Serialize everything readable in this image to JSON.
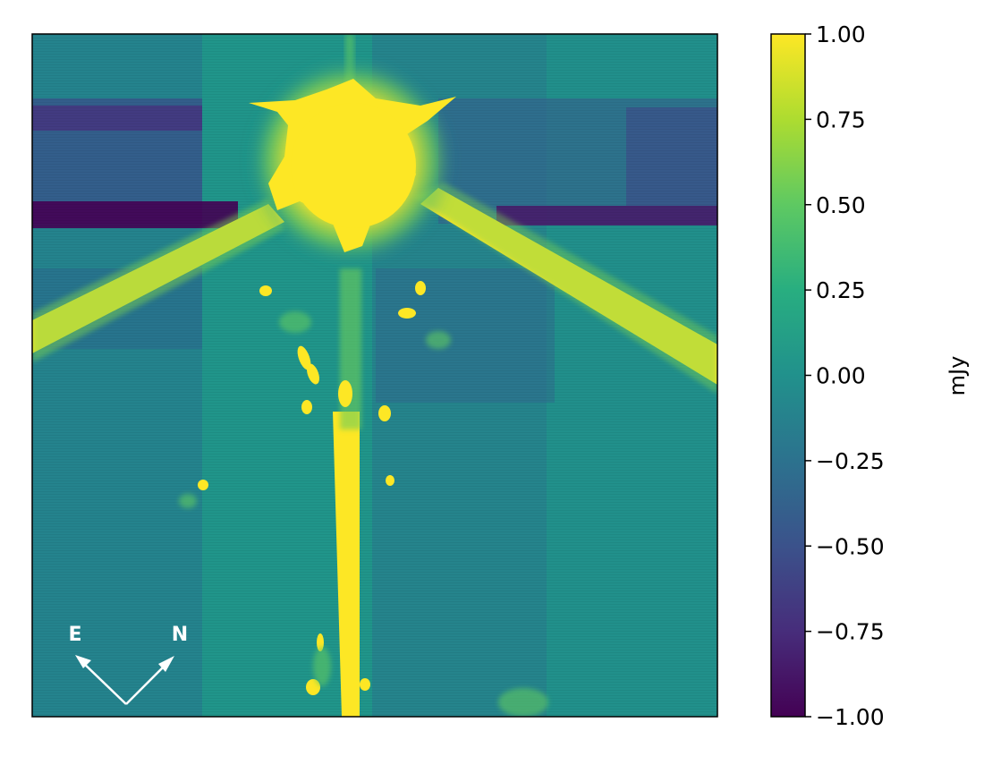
{
  "chart_data": {
    "type": "heatmap",
    "colormap": "viridis",
    "colorbar": {
      "label": "mJy",
      "range": [
        -1.0,
        1.0
      ],
      "ticks": [
        1.0,
        0.75,
        0.5,
        0.25,
        0.0,
        -0.25,
        -0.5,
        -0.75,
        -1.0
      ],
      "tick_labels": [
        "1.00",
        "0.75",
        "0.50",
        "0.25",
        "0.00",
        "−0.25",
        "−0.50",
        "−0.75",
        "−1.00"
      ]
    },
    "compass": {
      "east_label": "E",
      "north_label": "N"
    },
    "grid": false
  }
}
